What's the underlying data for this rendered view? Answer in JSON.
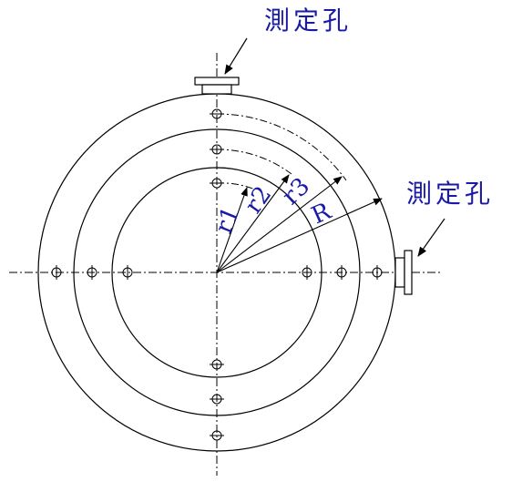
{
  "labels": {
    "hole_top": "測定孔",
    "hole_right": "測定孔",
    "r1": "r1",
    "r2": "r2",
    "r3": "r3",
    "R": "R"
  },
  "colors": {
    "line": "#000000",
    "label": "#1a1aa6"
  },
  "icons": [
    "arrow-icon",
    "flange-nozzle-icon"
  ]
}
